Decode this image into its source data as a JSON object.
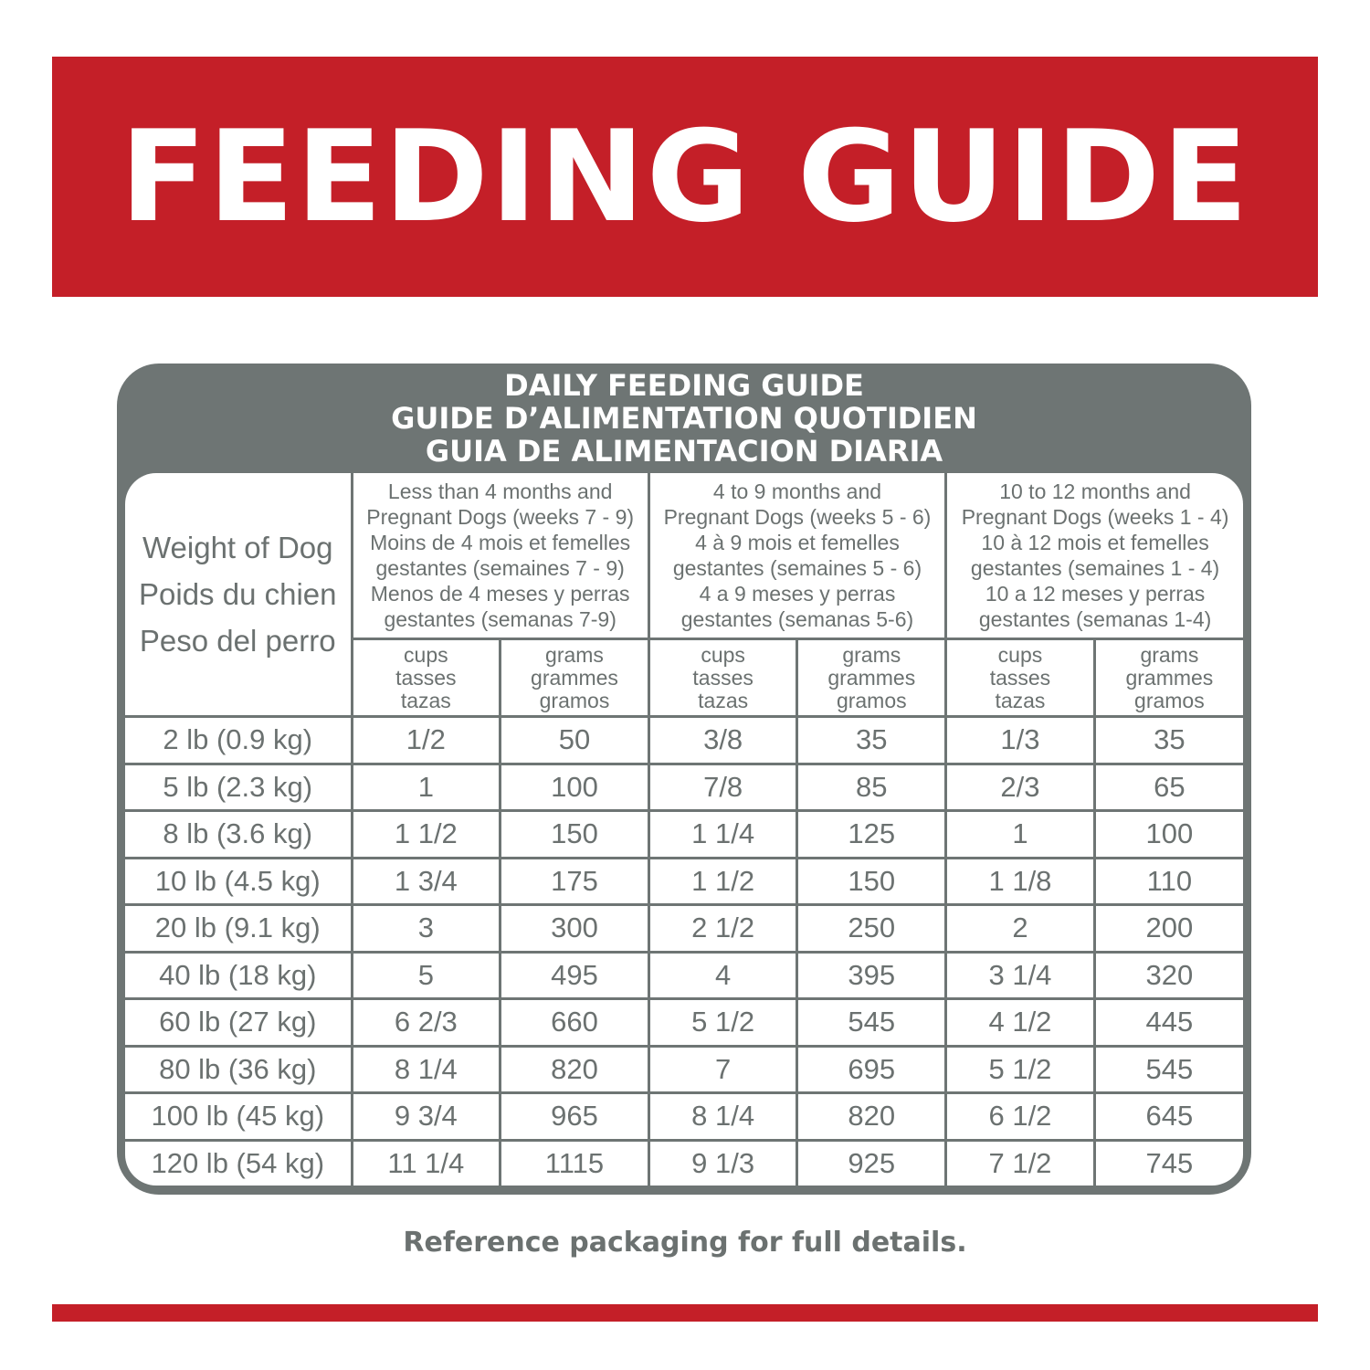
{
  "banner": {
    "title": "FEEDING GUIDE"
  },
  "card": {
    "heading_lines": [
      "DAILY FEEDING GUIDE",
      "GUIDE D’ALIMENTATION QUOTIDIEN",
      "GUIA DE ALIMENTACION DIARIA"
    ]
  },
  "table": {
    "weight_header": [
      "Weight of Dog",
      "Poids du chien",
      "Peso del perro"
    ],
    "groups": [
      {
        "lines": [
          "Less than 4 months and",
          "Pregnant Dogs (weeks 7 - 9)",
          "Moins de 4 mois et femelles",
          "gestantes (semaines 7 - 9)",
          "Menos de 4 meses y perras",
          "gestantes (semanas 7-9)"
        ]
      },
      {
        "lines": [
          "4 to 9 months and",
          "Pregnant Dogs (weeks 5 - 6)",
          "4 à 9 mois et femelles",
          "gestantes (semaines 5 - 6)",
          "4 a 9 meses y perras",
          "gestantes (semanas 5-6)"
        ]
      },
      {
        "lines": [
          "10 to 12 months and",
          "Pregnant Dogs (weeks 1 - 4)",
          "10 à 12 mois et femelles",
          "gestantes (semaines 1 - 4)",
          "10 a 12 meses y perras",
          "gestantes (semanas 1-4)"
        ]
      }
    ],
    "cups_header": [
      "cups",
      "tasses",
      "tazas"
    ],
    "grams_header": [
      "grams",
      "grammes",
      "gramos"
    ],
    "rows": [
      {
        "weight": "2 lb (0.9 kg)",
        "values": [
          "1/2",
          "50",
          "3/8",
          "35",
          "1/3",
          "35"
        ]
      },
      {
        "weight": "5 lb (2.3 kg)",
        "values": [
          "1",
          "100",
          "7/8",
          "85",
          "2/3",
          "65"
        ]
      },
      {
        "weight": "8 lb (3.6 kg)",
        "values": [
          "1 1/2",
          "150",
          "1 1/4",
          "125",
          "1",
          "100"
        ]
      },
      {
        "weight": "10 lb (4.5 kg)",
        "values": [
          "1 3/4",
          "175",
          "1 1/2",
          "150",
          "1 1/8",
          "110"
        ]
      },
      {
        "weight": "20 lb (9.1 kg)",
        "values": [
          "3",
          "300",
          "2 1/2",
          "250",
          "2",
          "200"
        ]
      },
      {
        "weight": "40 lb (18 kg)",
        "values": [
          "5",
          "495",
          "4",
          "395",
          "3 1/4",
          "320"
        ]
      },
      {
        "weight": "60 lb (27 kg)",
        "values": [
          "6 2/3",
          "660",
          "5 1/2",
          "545",
          "4 1/2",
          "445"
        ]
      },
      {
        "weight": "80 lb (36 kg)",
        "values": [
          "8 1/4",
          "820",
          "7",
          "695",
          "5 1/2",
          "545"
        ]
      },
      {
        "weight": "100 lb (45 kg)",
        "values": [
          "9 3/4",
          "965",
          "8 1/4",
          "820",
          "6 1/2",
          "645"
        ]
      },
      {
        "weight": "120 lb (54 kg)",
        "values": [
          "11 1/4",
          "1115",
          "9 1/3",
          "925",
          "7 1/2",
          "745"
        ]
      }
    ]
  },
  "footer": {
    "note": "Reference packaging for full details."
  },
  "colors": {
    "brand_red": "#c41f28",
    "gray": "#6e7574",
    "text_gray": "#6b7170"
  }
}
